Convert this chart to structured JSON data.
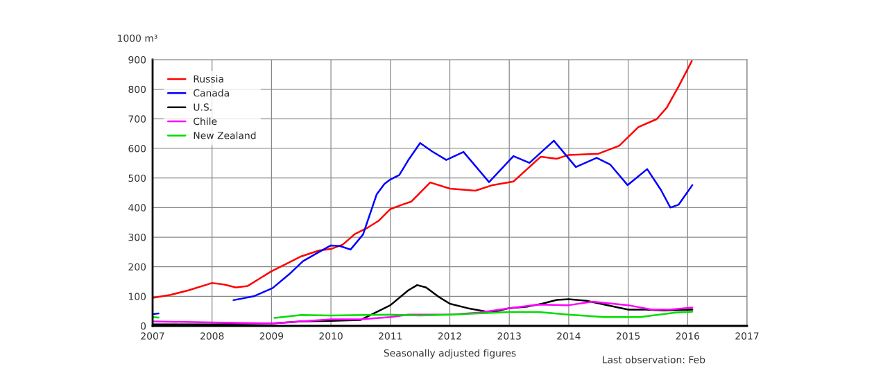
{
  "chart_data": {
    "type": "line",
    "ylabel": "1000 m³",
    "xlabel": "Seasonally adjusted figures",
    "annotations": [
      "Last observation: Feb"
    ],
    "xlim": [
      2007,
      2017
    ],
    "xticks": [
      2007,
      2008,
      2009,
      2010,
      2011,
      2012,
      2013,
      2014,
      2015,
      2016,
      2017
    ],
    "ylim": [
      0,
      900
    ],
    "yticks": [
      0,
      100,
      200,
      300,
      400,
      500,
      600,
      700,
      800,
      900
    ],
    "grid": true,
    "legend": "top left",
    "line_style": "solid",
    "marker": "none",
    "series": [
      {
        "name": "Russia",
        "color": "#ff0000",
        "x": [
          2007.0,
          2007.3,
          2007.6,
          2008.0,
          2008.2,
          2008.4,
          2008.6,
          2008.8,
          2009.0,
          2009.2,
          2009.5,
          2009.8,
          2010.0,
          2010.2,
          2010.4,
          2010.6,
          2010.8,
          2011.0,
          2011.2,
          2011.35,
          2011.67,
          2012.0,
          2012.43,
          2012.72,
          2013.07,
          2013.3,
          2013.53,
          2013.8,
          2014.0,
          2014.5,
          2014.85,
          2015.17,
          2015.48,
          2015.65,
          2015.85,
          2016.07
        ],
        "values": [
          95,
          105,
          120,
          145,
          140,
          130,
          135,
          160,
          185,
          205,
          235,
          255,
          260,
          275,
          310,
          330,
          355,
          395,
          410,
          420,
          485,
          464,
          457,
          476,
          488,
          530,
          572,
          565,
          578,
          582,
          609,
          672,
          699,
          738,
          810,
          895
        ]
      },
      {
        "name": "Canada",
        "color": "#0000ff",
        "x": [
          2007.0,
          2007.1,
          2007.2,
          2008.36,
          2008.7,
          2009.02,
          2009.3,
          2009.53,
          2009.8,
          2010.0,
          2010.15,
          2010.33,
          2010.54,
          2010.77,
          2010.9,
          2011.0,
          2011.15,
          2011.3,
          2011.5,
          2011.7,
          2011.94,
          2012.23,
          2012.66,
          2013.07,
          2013.34,
          2013.75,
          2014.12,
          2014.47,
          2014.7,
          2014.99,
          2015.32,
          2015.55,
          2015.71,
          2015.85,
          2016.08
        ],
        "values": [
          40,
          42,
          null,
          87,
          100,
          128,
          175,
          219,
          250,
          272,
          270,
          258,
          309,
          445,
          480,
          495,
          510,
          560,
          618,
          590,
          561,
          588,
          486,
          574,
          551,
          626,
          537,
          568,
          545,
          476,
          530,
          460,
          400,
          410,
          476
        ]
      },
      {
        "name": "U.S.",
        "color": "#000000",
        "x": [
          2007.0,
          2008.0,
          2009.0,
          2009.5,
          2010.0,
          2010.5,
          2010.8,
          2011.0,
          2011.3,
          2011.45,
          2011.6,
          2011.8,
          2012.0,
          2012.3,
          2012.7,
          2013.0,
          2013.3,
          2013.55,
          2013.8,
          2014.0,
          2014.3,
          2014.6,
          2015.0,
          2015.3,
          2015.6,
          2016.08
        ],
        "values": [
          5,
          5,
          8,
          15,
          17,
          20,
          50,
          70,
          120,
          138,
          130,
          100,
          75,
          60,
          45,
          60,
          65,
          75,
          88,
          90,
          85,
          72,
          55,
          55,
          52,
          55
        ]
      },
      {
        "name": "Chile",
        "color": "#ff00ff",
        "x": [
          2007.0,
          2008.0,
          2009.0,
          2009.5,
          2010.0,
          2010.5,
          2011.0,
          2011.3,
          2012.0,
          2012.5,
          2013.0,
          2013.5,
          2014.0,
          2014.4,
          2015.0,
          2015.4,
          2015.7,
          2016.08
        ],
        "values": [
          15,
          12,
          8,
          15,
          22,
          22,
          30,
          38,
          38,
          45,
          60,
          72,
          70,
          82,
          70,
          55,
          55,
          62
        ]
      },
      {
        "name": "New Zealand",
        "color": "#00dd00",
        "x": [
          2007.0,
          2007.1,
          2007.2,
          2009.05,
          2009.5,
          2010.0,
          2011.0,
          2011.5,
          2012.0,
          2013.0,
          2013.5,
          2014.0,
          2014.6,
          2015.2,
          2015.8,
          2016.08
        ],
        "values": [
          30,
          28,
          null,
          27,
          37,
          35,
          38,
          35,
          38,
          47,
          47,
          38,
          30,
          30,
          45,
          48
        ]
      }
    ]
  }
}
